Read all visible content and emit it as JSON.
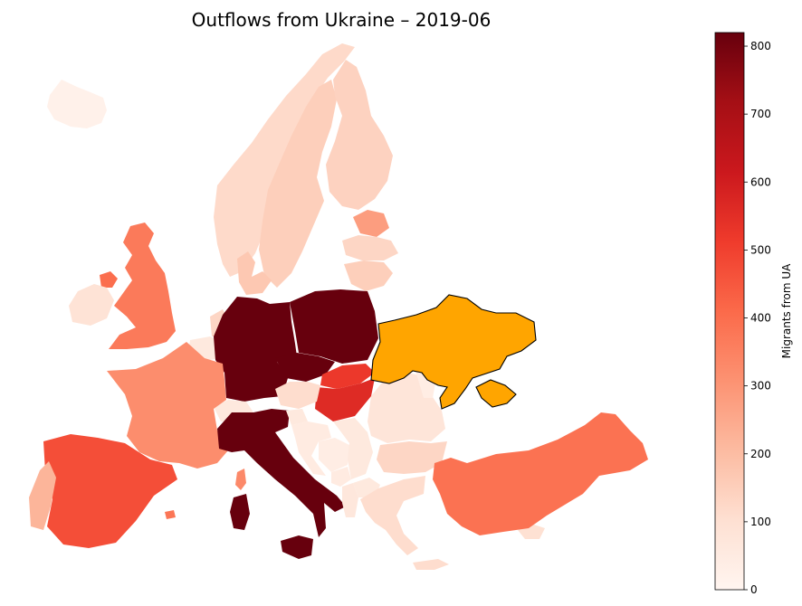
{
  "title": "Outflows from Ukraine – 2019-06",
  "colorbar": {
    "label": "Migrants from UA",
    "min": 0,
    "max": 820,
    "ticks": [
      0,
      100,
      200,
      300,
      400,
      500,
      600,
      700,
      800
    ],
    "colormap": "Reds",
    "stops": [
      "#fff5f0",
      "#fee0d2",
      "#fcbba1",
      "#fc9272",
      "#fb6a4a",
      "#ef3b2c",
      "#cb181d",
      "#a50f15",
      "#67000d"
    ]
  },
  "origin": {
    "country": "Ukraine",
    "highlight_color": "#ffa500"
  },
  "chart_data": {
    "type": "choropleth",
    "title": "Outflows from Ukraine – 2019-06",
    "legend_label": "Migrants from UA",
    "value_range": [
      0,
      820
    ],
    "values": [
      {
        "country": "Iceland",
        "value": 20
      },
      {
        "country": "Norway",
        "value": 120
      },
      {
        "country": "Sweden",
        "value": 150
      },
      {
        "country": "Finland",
        "value": 140
      },
      {
        "country": "Estonia",
        "value": 280
      },
      {
        "country": "Latvia",
        "value": 130
      },
      {
        "country": "Lithuania",
        "value": 150
      },
      {
        "country": "Denmark",
        "value": 170
      },
      {
        "country": "United Kingdom",
        "value": 370
      },
      {
        "country": "Ireland",
        "value": 90
      },
      {
        "country": "Northern Ireland",
        "value": 400
      },
      {
        "country": "Netherlands",
        "value": 130
      },
      {
        "country": "Belgium",
        "value": 60
      },
      {
        "country": "Luxembourg",
        "value": 40
      },
      {
        "country": "Germany",
        "value": 820
      },
      {
        "country": "Poland",
        "value": 820
      },
      {
        "country": "Czechia",
        "value": 820
      },
      {
        "country": "Slovakia",
        "value": 520
      },
      {
        "country": "Hungary",
        "value": 560
      },
      {
        "country": "Austria",
        "value": 110
      },
      {
        "country": "Switzerland",
        "value": 60
      },
      {
        "country": "France",
        "value": 320
      },
      {
        "country": "Spain",
        "value": 470
      },
      {
        "country": "Portugal",
        "value": 220
      },
      {
        "country": "Italy",
        "value": 820
      },
      {
        "country": "Sardinia",
        "value": 820
      },
      {
        "country": "Sicily",
        "value": 820
      },
      {
        "country": "Corsica",
        "value": 330
      },
      {
        "country": "Malta",
        "value": 380
      },
      {
        "country": "Slovenia",
        "value": 60
      },
      {
        "country": "Croatia",
        "value": 50
      },
      {
        "country": "Bosnia and Herzegovina",
        "value": 40
      },
      {
        "country": "Serbia",
        "value": 60
      },
      {
        "country": "Montenegro",
        "value": 50
      },
      {
        "country": "Albania",
        "value": 70
      },
      {
        "country": "North Macedonia",
        "value": 60
      },
      {
        "country": "Romania",
        "value": 80
      },
      {
        "country": "Moldova",
        "value": 40
      },
      {
        "country": "Bulgaria",
        "value": 130
      },
      {
        "country": "Greece",
        "value": 110
      },
      {
        "country": "Cyprus",
        "value": 100
      },
      {
        "country": "Turkey",
        "value": 390
      }
    ]
  }
}
